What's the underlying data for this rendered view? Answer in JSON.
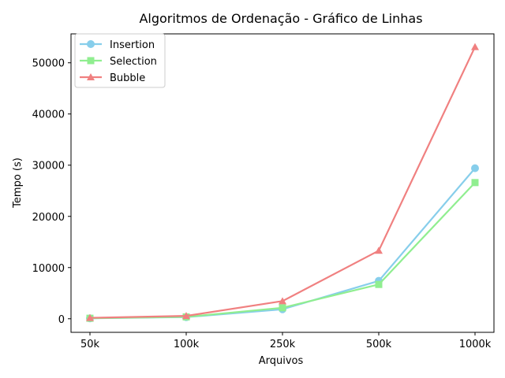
{
  "chart_data": {
    "type": "line",
    "title": "Algoritmos de Ordenação - Gráfico de Linhas",
    "xlabel": "Arquivos",
    "ylabel": "Tempo (s)",
    "categories": [
      "50k",
      "100k",
      "250k",
      "500k",
      "1000k"
    ],
    "ylim": [
      -2650,
      55650
    ],
    "yticks": [
      0,
      10000,
      20000,
      30000,
      40000,
      50000
    ],
    "grid": false,
    "legend_position": "top-left",
    "series": [
      {
        "name": "Insertion",
        "marker": "circle",
        "color": "#87ceeb",
        "values": [
          80,
          320,
          1850,
          7400,
          29400
        ]
      },
      {
        "name": "Selection",
        "marker": "square",
        "color": "#90ee90",
        "values": [
          100,
          360,
          2150,
          6700,
          26600
        ]
      },
      {
        "name": "Bubble",
        "marker": "triangle",
        "color": "#f08080",
        "values": [
          180,
          560,
          3450,
          13300,
          53100
        ]
      }
    ]
  }
}
